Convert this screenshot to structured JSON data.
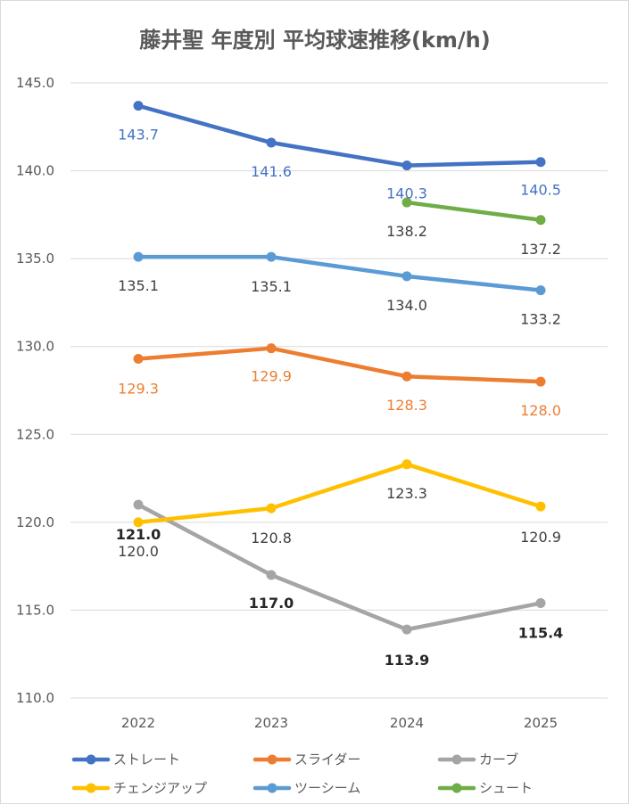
{
  "chart_data": {
    "type": "line",
    "title": "藤井聖 年度別 平均球速推移(km/h)",
    "xlabel": "",
    "ylabel": "",
    "categories": [
      "2022",
      "2023",
      "2024",
      "2025"
    ],
    "ylim": [
      110,
      145
    ],
    "yticks": [
      "110.0",
      "115.0",
      "120.0",
      "125.0",
      "130.0",
      "135.0",
      "140.0",
      "145.0"
    ],
    "grid": true,
    "legend": "bottom",
    "series": [
      {
        "name": "ストレート",
        "color": "#4472C4",
        "values": [
          143.7,
          141.6,
          140.3,
          140.5
        ],
        "labels": [
          "143.7",
          "141.6",
          "140.3",
          "140.5"
        ],
        "label_color": "#4472C4",
        "label_bold": false
      },
      {
        "name": "スライダー",
        "color": "#ED7D31",
        "values": [
          129.3,
          129.9,
          128.3,
          128.0
        ],
        "labels": [
          "129.3",
          "129.9",
          "128.3",
          "128.0"
        ],
        "label_color": "#ED7D31",
        "label_bold": false
      },
      {
        "name": "カーブ",
        "color": "#A5A5A5",
        "values": [
          121.0,
          117.0,
          113.9,
          115.4
        ],
        "labels": [
          "121.0",
          "117.0",
          "113.9",
          "115.4"
        ],
        "label_color": "#262626",
        "label_bold": true
      },
      {
        "name": "チェンジアップ",
        "color": "#FFC000",
        "values": [
          120.0,
          120.8,
          123.3,
          120.9
        ],
        "labels": [
          "120.0",
          "120.8",
          "123.3",
          "120.9"
        ],
        "label_color": "#404040",
        "label_bold": false
      },
      {
        "name": "ツーシーム",
        "color": "#5B9BD5",
        "values": [
          135.1,
          135.1,
          134.0,
          133.2
        ],
        "labels": [
          "135.1",
          "135.1",
          "134.0",
          "133.2"
        ],
        "label_color": "#404040",
        "label_bold": false
      },
      {
        "name": "シュート",
        "color": "#70AD47",
        "values": [
          null,
          null,
          138.2,
          137.2
        ],
        "labels": [
          null,
          null,
          "138.2",
          "137.2"
        ],
        "label_color": "#404040",
        "label_bold": false
      }
    ]
  }
}
